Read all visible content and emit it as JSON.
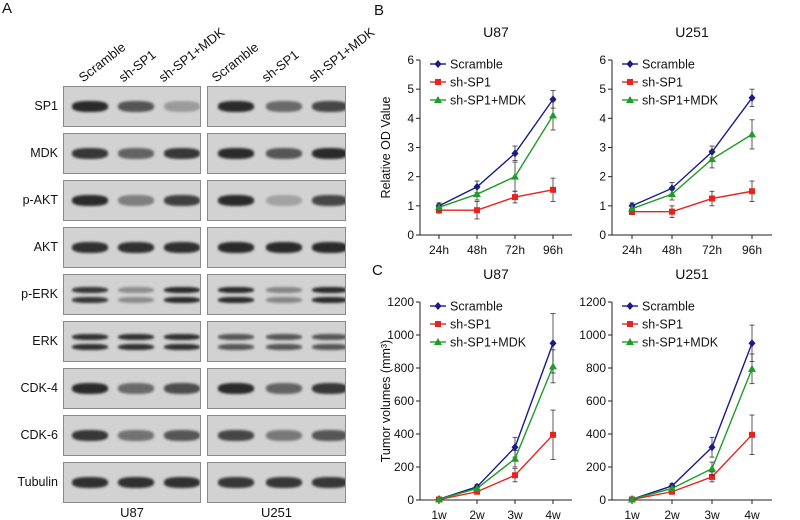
{
  "panel_a": {
    "letter": "A",
    "lanes": [
      "Scramble",
      "sh-SP1",
      "sh-SP1+MDK",
      "Scramble",
      "sh-SP1",
      "sh-SP1+MDK"
    ],
    "rows": [
      "SP1",
      "MDK",
      "p-AKT",
      "AKT",
      "p-ERK",
      "ERK",
      "CDK-4",
      "CDK-6",
      "Tubulin"
    ],
    "cell_lines": [
      "U87",
      "U251"
    ]
  },
  "panel_b_letter": "B",
  "panel_c_letter": "C",
  "colors": {
    "scramble": "#1a1a8c",
    "shsp1": "#e8231f",
    "shsp1mdk": "#1f9c2a"
  },
  "chart_data": [
    {
      "type": "line",
      "title": "U87",
      "ylabel": "Relative OD Value",
      "categories": [
        "24h",
        "48h",
        "72h",
        "96h"
      ],
      "ylim": [
        0,
        6
      ],
      "yticks": [
        "0",
        "1",
        "2",
        "3",
        "4",
        "5",
        "6"
      ],
      "legend": "top-left",
      "series": [
        {
          "name": "Scramble",
          "values": [
            1.0,
            1.65,
            2.8,
            4.65
          ],
          "errors": [
            0.1,
            0.2,
            0.25,
            0.3
          ]
        },
        {
          "name": "sh-SP1",
          "values": [
            0.85,
            0.85,
            1.3,
            1.55
          ],
          "errors": [
            0.1,
            0.3,
            0.2,
            0.4
          ]
        },
        {
          "name": "sh-SP1+MDK",
          "values": [
            0.95,
            1.4,
            2.0,
            4.1
          ],
          "errors": [
            0.1,
            0.2,
            0.5,
            0.5
          ]
        }
      ]
    },
    {
      "type": "line",
      "title": "U251",
      "ylabel": "",
      "categories": [
        "24h",
        "48h",
        "72h",
        "96h"
      ],
      "ylim": [
        0,
        6
      ],
      "yticks": [
        "0",
        "1",
        "2",
        "3",
        "4",
        "5",
        "6"
      ],
      "legend": "top-left",
      "series": [
        {
          "name": "Scramble",
          "values": [
            1.0,
            1.6,
            2.85,
            4.7
          ],
          "errors": [
            0.1,
            0.2,
            0.2,
            0.3
          ]
        },
        {
          "name": "sh-SP1",
          "values": [
            0.8,
            0.8,
            1.25,
            1.5
          ],
          "errors": [
            0.1,
            0.2,
            0.25,
            0.35
          ]
        },
        {
          "name": "sh-SP1+MDK",
          "values": [
            0.9,
            1.4,
            2.6,
            3.45
          ],
          "errors": [
            0.1,
            0.2,
            0.3,
            0.5
          ]
        }
      ]
    },
    {
      "type": "line",
      "title": "U87",
      "ylabel": "Tumor volumes (mm³)",
      "categories": [
        "1w",
        "2w",
        "3w",
        "4w"
      ],
      "ylim": [
        0,
        1200
      ],
      "yticks": [
        "0",
        "200",
        "400",
        "600",
        "800",
        "1000",
        "1200"
      ],
      "legend": "top-left",
      "series": [
        {
          "name": "Scramble",
          "values": [
            5,
            80,
            320,
            950
          ],
          "errors": [
            2,
            15,
            60,
            180
          ]
        },
        {
          "name": "sh-SP1",
          "values": [
            3,
            50,
            150,
            395
          ],
          "errors": [
            2,
            10,
            40,
            150
          ]
        },
        {
          "name": "sh-SP1+MDK",
          "values": [
            4,
            70,
            250,
            810
          ],
          "errors": [
            2,
            12,
            50,
            100
          ]
        }
      ]
    },
    {
      "type": "line",
      "title": "U251",
      "ylabel": "",
      "categories": [
        "1w",
        "2w",
        "3w",
        "4w"
      ],
      "ylim": [
        0,
        1200
      ],
      "yticks": [
        "0",
        "200",
        "400",
        "600",
        "800",
        "1000",
        "1200"
      ],
      "legend": "top-left",
      "series": [
        {
          "name": "Scramble",
          "values": [
            5,
            85,
            320,
            950
          ],
          "errors": [
            2,
            15,
            60,
            110
          ]
        },
        {
          "name": "sh-SP1",
          "values": [
            3,
            50,
            140,
            395
          ],
          "errors": [
            2,
            10,
            30,
            120
          ]
        },
        {
          "name": "sh-SP1+MDK",
          "values": [
            4,
            70,
            190,
            795
          ],
          "errors": [
            2,
            12,
            40,
            90
          ]
        }
      ]
    }
  ]
}
